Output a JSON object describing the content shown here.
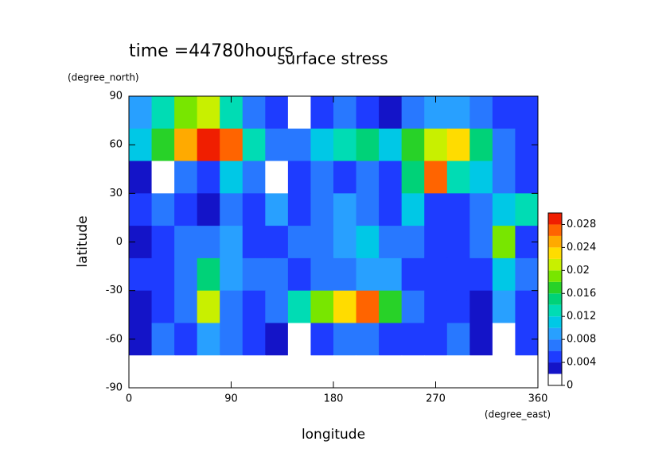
{
  "chart_data": {
    "type": "heatmap",
    "title": "surface stress",
    "annotation": "time =44780hours",
    "x_label": "longitude",
    "y_label": "latitude",
    "x_unit": "(degree_east)",
    "y_unit": "(degree_north)",
    "xlim": [
      0,
      360
    ],
    "xticks": [
      0,
      90,
      180,
      270,
      360
    ],
    "ylim": [
      -90,
      90
    ],
    "yticks": [
      -90,
      -60,
      -30,
      0,
      30,
      60,
      90
    ],
    "x": [
      10,
      30,
      50,
      70,
      90,
      110,
      130,
      150,
      170,
      190,
      210,
      230,
      250,
      270,
      290,
      310,
      330,
      350
    ],
    "y": [
      80,
      60,
      40,
      20,
      0,
      -20,
      -40,
      -60,
      -80
    ],
    "z": [
      [
        0.008,
        0.012,
        0.018,
        0.02,
        0.012,
        0.006,
        0.004,
        0.001,
        0.004,
        0.006,
        0.004,
        0.003,
        0.006,
        0.008,
        0.008,
        0.006,
        0.005,
        0.004
      ],
      [
        0.01,
        0.016,
        0.024,
        0.03,
        0.026,
        0.012,
        0.006,
        0.006,
        0.01,
        0.012,
        0.014,
        0.01,
        0.016,
        0.02,
        0.022,
        0.014,
        0.006,
        0.004
      ],
      [
        0.002,
        0.001,
        0.006,
        0.004,
        0.01,
        0.006,
        0.001,
        0.004,
        0.006,
        0.004,
        0.006,
        0.004,
        0.014,
        0.026,
        0.012,
        0.01,
        0.006,
        0.004
      ],
      [
        0.004,
        0.006,
        0.004,
        0.002,
        0.006,
        0.004,
        0.008,
        0.004,
        0.006,
        0.008,
        0.006,
        0.004,
        0.01,
        0.004,
        0.004,
        0.006,
        0.01,
        0.012
      ],
      [
        0.002,
        0.004,
        0.006,
        0.006,
        0.008,
        0.004,
        0.004,
        0.006,
        0.006,
        0.008,
        0.01,
        0.006,
        0.006,
        0.004,
        0.004,
        0.006,
        0.018,
        0.004
      ],
      [
        0.004,
        0.004,
        0.006,
        0.014,
        0.008,
        0.006,
        0.006,
        0.004,
        0.006,
        0.006,
        0.008,
        0.008,
        0.004,
        0.004,
        0.004,
        0.004,
        0.01,
        0.006
      ],
      [
        0.002,
        0.004,
        0.006,
        0.02,
        0.006,
        0.004,
        0.006,
        0.012,
        0.018,
        0.022,
        0.026,
        0.016,
        0.006,
        0.004,
        0.004,
        0.002,
        0.008,
        0.004
      ],
      [
        0.002,
        0.006,
        0.004,
        0.008,
        0.006,
        0.004,
        0.002,
        0.001,
        0.004,
        0.006,
        0.006,
        0.004,
        0.004,
        0.004,
        0.006,
        0.003,
        0.001,
        0.004
      ],
      [
        0,
        0,
        0,
        0,
        0,
        0,
        0,
        0,
        0,
        0,
        0,
        0,
        0,
        0,
        0,
        0,
        0,
        0
      ]
    ],
    "levels": [
      0,
      0.002,
      0.004,
      0.006,
      0.008,
      0.01,
      0.012,
      0.014,
      0.016,
      0.018,
      0.02,
      0.022,
      0.024,
      0.026,
      0.028,
      0.03
    ],
    "colors": [
      "#ffffff",
      "#1414c8",
      "#1e3cff",
      "#2878ff",
      "#28a0ff",
      "#00c8e6",
      "#00dcb4",
      "#00d278",
      "#28d228",
      "#78e600",
      "#c8f000",
      "#ffdc00",
      "#ffaa00",
      "#ff6400",
      "#f01e00"
    ],
    "colorbar_ticks": [
      0,
      0.004,
      0.008,
      0.012,
      0.016,
      0.02,
      0.024,
      0.028
    ]
  }
}
